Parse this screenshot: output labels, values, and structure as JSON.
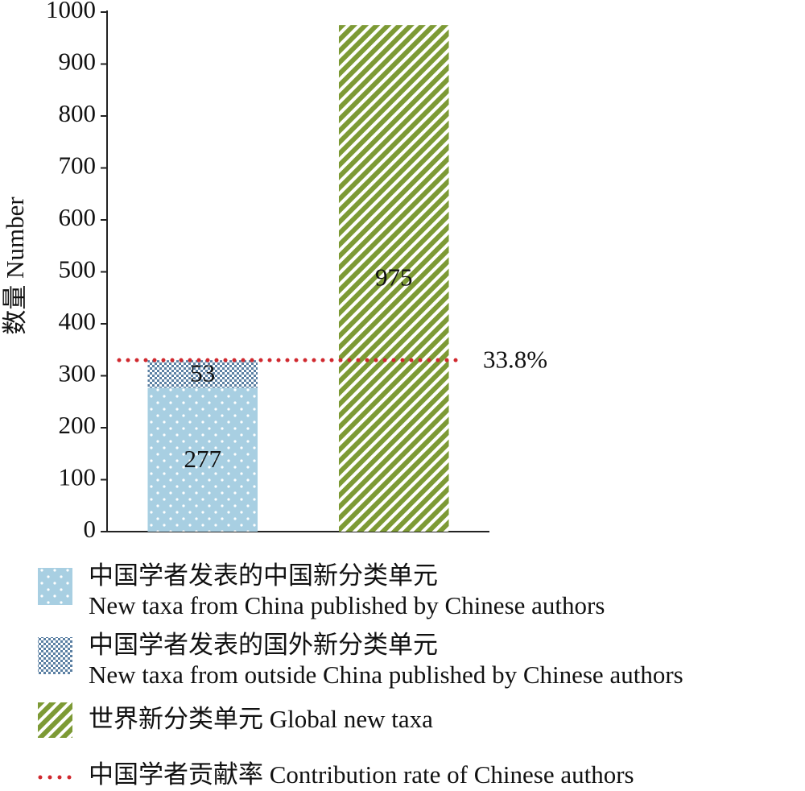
{
  "chart_data": {
    "type": "bar",
    "stacked": true,
    "categories": [
      null,
      null
    ],
    "ylabel": "数量 Number",
    "ylim": [
      0,
      1000
    ],
    "yticks": [
      0,
      100,
      200,
      300,
      400,
      500,
      600,
      700,
      800,
      900,
      1000
    ],
    "series": [
      {
        "name": [
          "中国学者发表的中国新分类单元",
          "New taxa from China published by Chinese authors"
        ],
        "color": "#a8cfe2",
        "pattern": "dots",
        "values": [
          277,
          null
        ]
      },
      {
        "name": [
          "中国学者发表的国外新分类单元",
          "New taxa from outside China published by Chinese authors"
        ],
        "color": "#5b80a3",
        "pattern": "checker",
        "values": [
          53,
          null
        ]
      },
      {
        "name": [
          "世界新分类单元 Global new taxa"
        ],
        "color": "#7d9a35",
        "pattern": "diagonal",
        "values": [
          null,
          975
        ]
      }
    ],
    "reference_line": {
      "name": "中国学者贡献率 Contribution rate of Chinese authors",
      "color": "#d0282e",
      "style": "dotted",
      "label": "33.8%"
    }
  }
}
